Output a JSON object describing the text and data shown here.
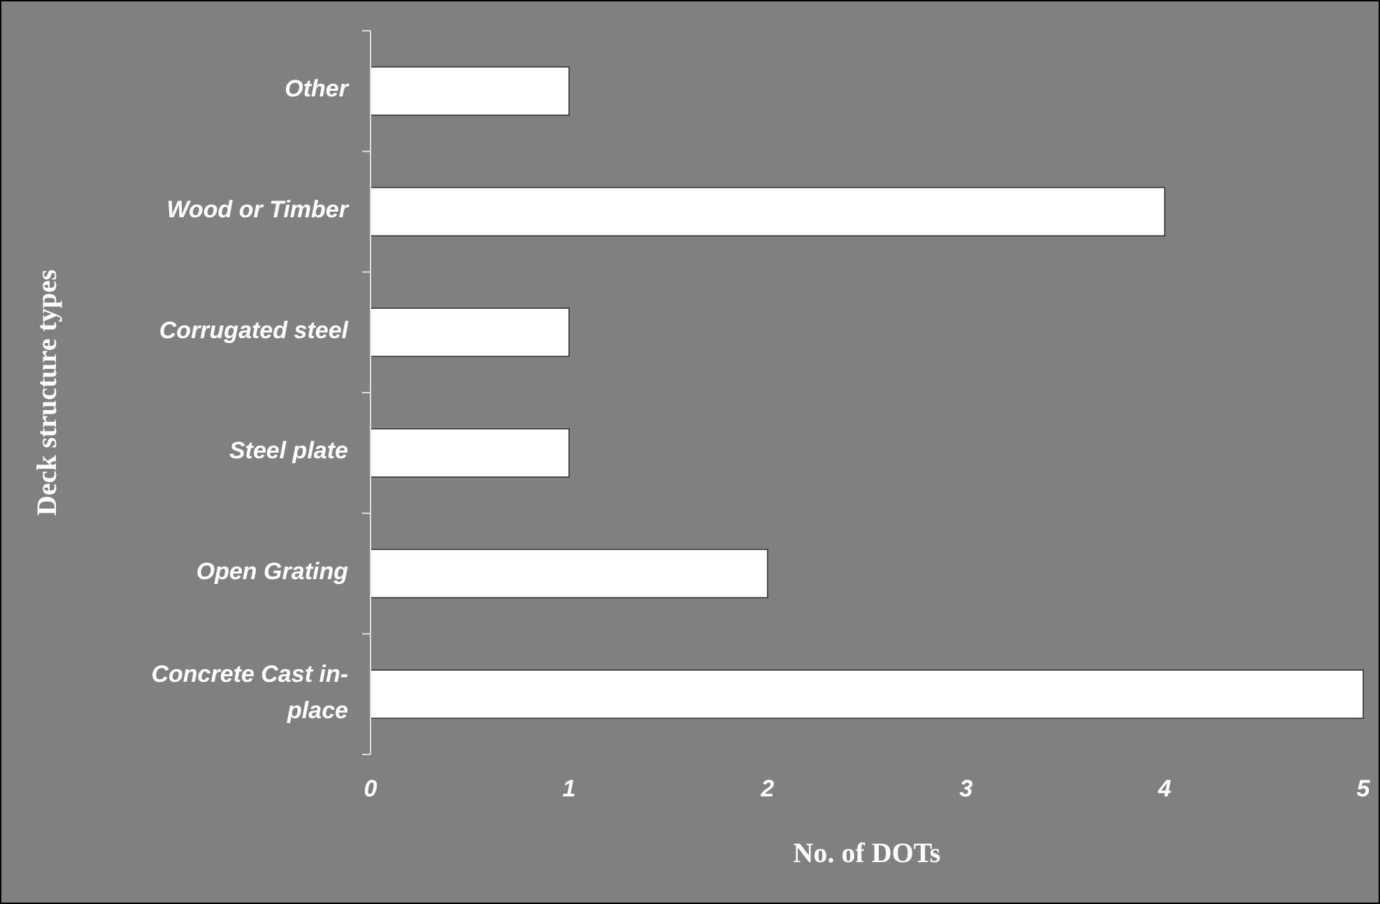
{
  "chart_data": {
    "type": "bar",
    "orientation": "horizontal",
    "xlabel": "No. of DOTs",
    "ylabel": "Deck structure types",
    "categories": [
      "Other",
      "Wood or Timber",
      "Corrugated steel",
      "Steel plate",
      "Open Grating",
      "Concrete Cast in-place"
    ],
    "values": [
      1,
      4,
      1,
      1,
      2,
      5
    ],
    "color": "#ffffff",
    "xlim": [
      0,
      5
    ],
    "xticks": [
      0,
      1,
      2,
      3,
      4,
      5
    ],
    "grid": false
  }
}
